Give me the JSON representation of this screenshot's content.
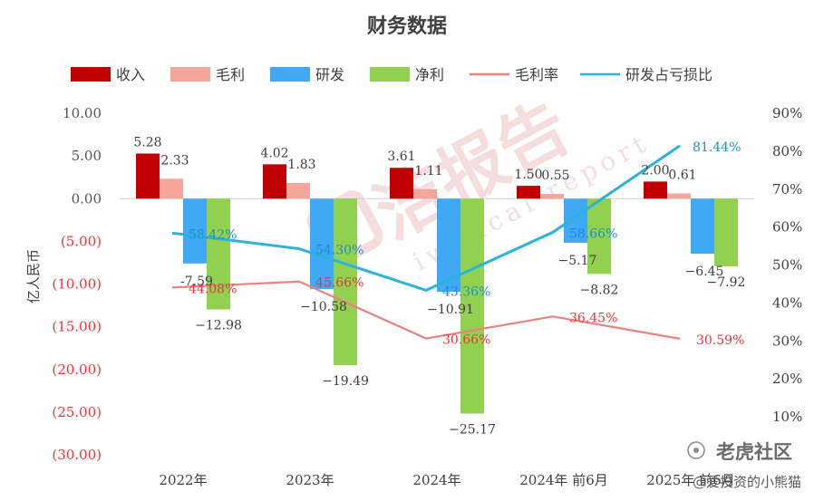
{
  "chart_data": {
    "type": "bar",
    "title": "财务数据",
    "ylabel": "亿人民币",
    "categories": [
      "2022年",
      "2023年",
      "2024年",
      "2024年前6月",
      "2025年前6月"
    ],
    "category_display": [
      "2022年",
      "2023年",
      "2024年",
      "2024年 前6月",
      "2025年 前6月"
    ],
    "y_left": {
      "min": -30,
      "max": 10,
      "ticks": [
        "10.00",
        "5.00",
        "0.00",
        "(5.00)",
        "(10.00)",
        "(15.00)",
        "(20.00)",
        "(25.00)",
        "(30.00)"
      ],
      "tick_values": [
        10,
        5,
        0,
        -5,
        -10,
        -15,
        -20,
        -25,
        -30
      ],
      "positive_color": "#555555",
      "negative_color": "#e8383d"
    },
    "y_right": {
      "min": 0,
      "max": 90,
      "ticks": [
        "90%",
        "80%",
        "70%",
        "60%",
        "50%",
        "40%",
        "30%",
        "20%",
        "10%",
        ""
      ],
      "tick_values": [
        90,
        80,
        70,
        60,
        50,
        40,
        30,
        20,
        10,
        0
      ]
    },
    "bar_series": [
      {
        "name": "收入",
        "color": "#c00000",
        "values": [
          5.28,
          4.02,
          3.61,
          1.5,
          2.0
        ],
        "labels": [
          "5.28",
          "4.02",
          "3.61",
          "1.50",
          "2.00"
        ]
      },
      {
        "name": "毛利",
        "color": "#f4a69a",
        "values": [
          2.33,
          1.83,
          1.11,
          0.55,
          0.61
        ],
        "labels": [
          "2.33",
          "1.83",
          "1.11",
          "0.55",
          "0.61"
        ]
      },
      {
        "name": "研发",
        "color": "#3fa9f5",
        "values": [
          -7.59,
          -10.58,
          -10.91,
          -5.17,
          -6.45
        ],
        "labels": [
          "-7.59",
          "−10.58",
          "−10.91",
          "−5.17",
          "−6.45"
        ]
      },
      {
        "name": "净利",
        "color": "#92d050",
        "values": [
          -12.98,
          -19.49,
          -25.17,
          -8.82,
          -7.92
        ],
        "labels": [
          "−12.98",
          "−19.49",
          "−25.17",
          "−8.82",
          "−7.92"
        ]
      }
    ],
    "line_series": [
      {
        "name": "毛利率",
        "color": "#f08080",
        "label_color": "#e8383d",
        "values": [
          44.08,
          45.66,
          30.66,
          36.45,
          30.59
        ],
        "labels": [
          "44.08%",
          "45.66%",
          "30.66%",
          "36.45%",
          "30.59%"
        ]
      },
      {
        "name": "研发占亏损比",
        "color": "#2bb3d9",
        "label_color": "#1d8fd0",
        "values": [
          58.42,
          54.3,
          43.36,
          58.66,
          81.44
        ],
        "labels": [
          "58.42%",
          "54.30%",
          "43.36%",
          "58.66%",
          "81.44%"
        ]
      }
    ],
    "legend_position": "top",
    "grid": false
  },
  "watermark": {
    "brand_text": "洁报告",
    "brand_sub": "iwencai report",
    "community_text": "老虎社区",
    "author_text": "@爱投资的小熊猫"
  }
}
